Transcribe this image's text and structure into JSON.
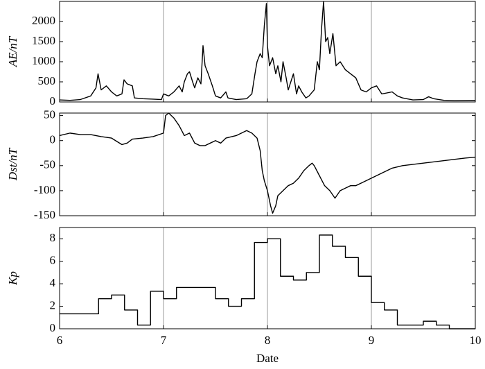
{
  "chart_data": [
    {
      "type": "line",
      "ylabel": "AE/nT",
      "x": [
        6.0,
        6.1,
        6.2,
        6.3,
        6.35,
        6.37,
        6.4,
        6.45,
        6.5,
        6.55,
        6.6,
        6.62,
        6.65,
        6.7,
        6.72,
        6.8,
        6.9,
        6.98,
        7.0,
        7.05,
        7.1,
        7.15,
        7.18,
        7.2,
        7.23,
        7.25,
        7.28,
        7.3,
        7.33,
        7.36,
        7.38,
        7.4,
        7.43,
        7.47,
        7.5,
        7.55,
        7.6,
        7.62,
        7.7,
        7.8,
        7.85,
        7.88,
        7.9,
        7.93,
        7.95,
        7.97,
        7.99,
        8.0,
        8.02,
        8.05,
        8.08,
        8.1,
        8.13,
        8.15,
        8.18,
        8.2,
        8.25,
        8.28,
        8.3,
        8.33,
        8.37,
        8.4,
        8.45,
        8.48,
        8.5,
        8.52,
        8.54,
        8.56,
        8.58,
        8.6,
        8.63,
        8.66,
        8.7,
        8.75,
        8.8,
        8.85,
        8.9,
        8.95,
        9.0,
        9.05,
        9.1,
        9.2,
        9.25,
        9.3,
        9.4,
        9.5,
        9.55,
        9.6,
        9.7,
        9.8,
        10.0
      ],
      "values": [
        50,
        40,
        60,
        150,
        350,
        700,
        300,
        400,
        250,
        150,
        200,
        550,
        450,
        400,
        100,
        80,
        70,
        60,
        200,
        150,
        250,
        400,
        250,
        500,
        700,
        750,
        500,
        350,
        600,
        450,
        1400,
        900,
        700,
        400,
        150,
        100,
        250,
        100,
        60,
        80,
        200,
        700,
        1000,
        1200,
        1100,
        1900,
        2450,
        1400,
        900,
        1100,
        700,
        900,
        500,
        1000,
        600,
        300,
        700,
        200,
        400,
        250,
        100,
        150,
        300,
        1000,
        800,
        1800,
        2500,
        1500,
        1600,
        1200,
        1700,
        900,
        1000,
        800,
        700,
        600,
        300,
        250,
        350,
        400,
        200,
        250,
        150,
        100,
        50,
        60,
        130,
        80,
        40,
        30,
        40
      ],
      "xlim": [
        6,
        10
      ],
      "xticks": [
        6,
        7,
        8,
        9,
        10
      ],
      "ylim": [
        0,
        2500
      ],
      "yticks": [
        0,
        500,
        1000,
        1500,
        2000
      ],
      "grid": true
    },
    {
      "type": "line",
      "ylabel": "Dst/nT",
      "x": [
        6.0,
        6.1,
        6.2,
        6.3,
        6.4,
        6.5,
        6.6,
        6.65,
        6.7,
        6.8,
        6.9,
        7.0,
        7.02,
        7.05,
        7.1,
        7.15,
        7.2,
        7.25,
        7.3,
        7.35,
        7.4,
        7.45,
        7.5,
        7.55,
        7.6,
        7.7,
        7.8,
        7.85,
        7.9,
        7.93,
        7.95,
        7.97,
        8.0,
        8.03,
        8.05,
        8.08,
        8.1,
        8.15,
        8.2,
        8.25,
        8.3,
        8.35,
        8.4,
        8.43,
        8.45,
        8.5,
        8.55,
        8.6,
        8.65,
        8.7,
        8.75,
        8.8,
        8.85,
        8.9,
        8.95,
        9.0,
        9.1,
        9.2,
        9.3,
        9.5,
        9.7,
        9.9,
        10.0
      ],
      "values": [
        10,
        15,
        12,
        12,
        8,
        5,
        -8,
        -5,
        3,
        5,
        8,
        15,
        50,
        55,
        45,
        30,
        10,
        15,
        -5,
        -10,
        -10,
        -5,
        0,
        -5,
        5,
        10,
        20,
        15,
        5,
        -20,
        -60,
        -80,
        -100,
        -130,
        -145,
        -130,
        -110,
        -100,
        -90,
        -85,
        -75,
        -60,
        -50,
        -45,
        -50,
        -70,
        -90,
        -100,
        -115,
        -100,
        -95,
        -90,
        -90,
        -85,
        -80,
        -75,
        -65,
        -55,
        -50,
        -45,
        -40,
        -35,
        -33
      ],
      "xlim": [
        6,
        10
      ],
      "xticks": [
        6,
        7,
        8,
        9,
        10
      ],
      "ylim": [
        -150,
        55
      ],
      "yticks": [
        -150,
        -100,
        -50,
        0,
        50
      ],
      "grid": true
    },
    {
      "type": "step",
      "ylabel": "Kp",
      "xlabel": "Date",
      "x": [
        6.0,
        6.125,
        6.25,
        6.375,
        6.5,
        6.625,
        6.75,
        6.875,
        7.0,
        7.125,
        7.25,
        7.375,
        7.5,
        7.625,
        7.75,
        7.875,
        8.0,
        8.125,
        8.25,
        8.375,
        8.5,
        8.625,
        8.75,
        8.875,
        9.0,
        9.125,
        9.25,
        9.375,
        9.5,
        9.625,
        9.75,
        9.875
      ],
      "values": [
        1.33,
        1.33,
        1.33,
        2.67,
        3.0,
        1.67,
        0.33,
        3.33,
        2.67,
        3.67,
        3.67,
        3.67,
        2.67,
        2.0,
        2.67,
        7.67,
        8.0,
        4.67,
        4.33,
        5.0,
        8.33,
        7.33,
        6.33,
        4.67,
        2.33,
        1.67,
        0.33,
        0.33,
        0.67,
        0.33,
        0,
        0
      ],
      "xlim": [
        6,
        10
      ],
      "xticks": [
        6,
        7,
        8,
        9,
        10
      ],
      "ylim": [
        0,
        9
      ],
      "yticks": [
        0,
        2,
        4,
        6,
        8
      ],
      "grid": true
    }
  ]
}
